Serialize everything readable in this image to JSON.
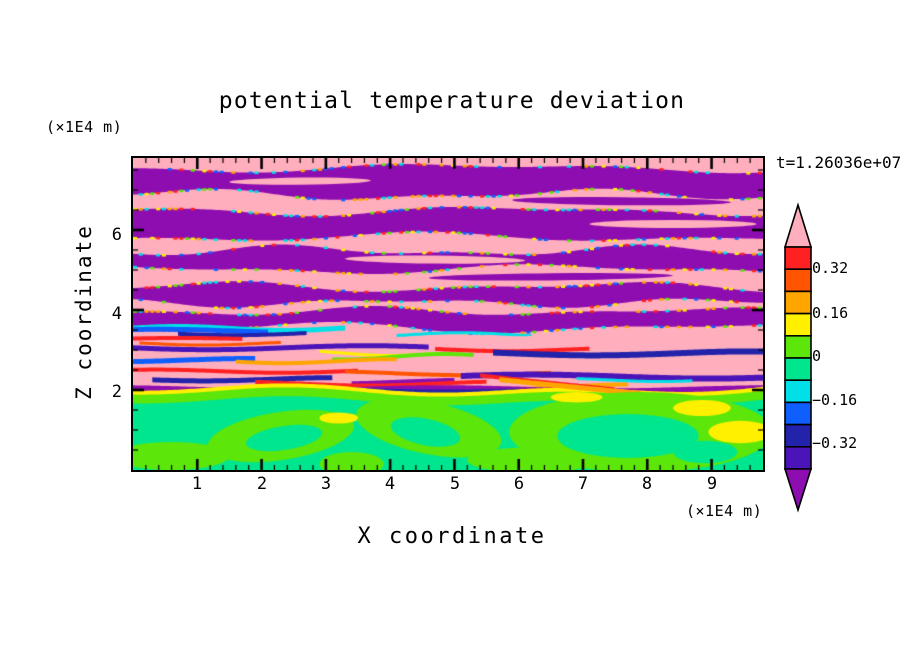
{
  "header": {
    "title": "potential temperature deviation"
  },
  "status": {
    "time_label": "t=1.26036e+07"
  },
  "axes": {
    "x": {
      "label": "X coordinate",
      "unit": "(×1E4 m)",
      "tick_labels": [
        "1",
        "2",
        "3",
        "4",
        "5",
        "6",
        "7",
        "8",
        "9"
      ]
    },
    "z": {
      "label": "Z coordinate",
      "unit": "(×1E4 m)",
      "tick_labels": [
        "6",
        "4",
        "2"
      ]
    }
  },
  "colorbar": {
    "tick_labels": [
      "0.32",
      "0.16",
      "0",
      "−0.16",
      "−0.32"
    ]
  },
  "chart_data": {
    "type": "heatmap",
    "title": "potential temperature deviation",
    "xlabel": "X coordinate",
    "ylabel": "Z coordinate",
    "x_unit": "x1E4 m",
    "z_unit": "x1E4 m",
    "time": "t=1.26036e+07",
    "x_range": [
      0,
      9.8
    ],
    "z_range": [
      0,
      7.8
    ],
    "x_major_ticks": [
      1,
      2,
      3,
      4,
      5,
      6,
      7,
      8,
      9
    ],
    "z_major_ticks": [
      2,
      4,
      6
    ],
    "x_minor_step": 0.2,
    "z_minor_step": 0.5,
    "grid": false,
    "legend_position": "right-colorbar",
    "seed": 11,
    "background": "pink",
    "palette": {
      "pink": "#FFAEBE",
      "red": "#FF2121",
      "orangered": "#FF5500",
      "orange": "#FFA500",
      "yellow": "#FFF000",
      "chartreuse": "#5CE60A",
      "green": "#00E68F",
      "cyan": "#00E0E6",
      "blue": "#0F5FFF",
      "navy": "#2222AA",
      "violet": "#4A14B8",
      "purple": "#8E0DB0"
    },
    "colorbar": {
      "levels": [
        -0.4,
        -0.32,
        -0.24,
        -0.16,
        -0.08,
        0,
        0.08,
        0.16,
        0.24,
        0.32,
        0.4
      ],
      "labeled_levels": [
        0.32,
        0.16,
        0,
        -0.16,
        -0.32
      ],
      "segment_colors": [
        "pink",
        "red",
        "orangered",
        "orange",
        "yellow",
        "chartreuse",
        "green",
        "cyan",
        "blue",
        "navy",
        "violet",
        "purple"
      ]
    },
    "edge_palette": [
      "cyan",
      "yellow",
      "red",
      "blue",
      "chartreuse",
      "orange"
    ],
    "bands": [
      {
        "c": "purple",
        "zt": 7.55,
        "zb": 6.88,
        "t": [
          0.08,
          1.2,
          3.8,
          0.05,
          2.7,
          1.1
        ],
        "b": [
          0.1,
          1.6,
          0.7,
          0.06,
          3.3,
          4.8
        ]
      },
      {
        "c": "purple",
        "zt": 6.48,
        "zb": 5.82,
        "t": [
          0.09,
          1.5,
          2.2,
          0.05,
          2.9,
          5.6
        ],
        "b": [
          0.08,
          1.3,
          4.1,
          0.06,
          2.4,
          0.9
        ]
      },
      {
        "c": "purple",
        "zt": 5.48,
        "zb": 5.02,
        "t": [
          0.1,
          1.8,
          5.0,
          0.06,
          3.5,
          2.8
        ],
        "b": [
          0.09,
          1.4,
          1.9,
          0.05,
          2.8,
          3.7
        ]
      },
      {
        "c": "purple",
        "zt": 4.58,
        "zb": 4.18,
        "t": [
          0.09,
          1.6,
          0.3,
          0.06,
          3.0,
          4.4
        ],
        "b": [
          0.08,
          2.0,
          2.6,
          0.05,
          3.6,
          1.5
        ]
      },
      {
        "c": "purple",
        "zt": 3.97,
        "zb": 3.55,
        "t": [
          0.08,
          1.9,
          3.3,
          0.05,
          3.2,
          0.2
        ],
        "b": [
          0.1,
          1.5,
          5.2,
          0.06,
          2.6,
          2.3
        ]
      }
    ],
    "lenses": [
      {
        "c": "purple",
        "cx": 7.6,
        "cy": 6.72,
        "rx": 1.7,
        "ry": 0.1,
        "rot": 0.01
      },
      {
        "c": "pink",
        "cx": 2.6,
        "cy": 7.22,
        "rx": 1.1,
        "ry": 0.09,
        "rot": -0.01
      },
      {
        "c": "pink",
        "cx": 4.7,
        "cy": 5.26,
        "rx": 1.4,
        "ry": 0.1,
        "rot": 0.01
      },
      {
        "c": "purple",
        "cx": 6.5,
        "cy": 4.83,
        "rx": 1.9,
        "ry": 0.09,
        "rot": -0.01
      },
      {
        "c": "purple",
        "cx": 1.9,
        "cy": 4.4,
        "rx": 1.3,
        "ry": 0.08,
        "rot": 0.02
      },
      {
        "c": "pink",
        "cx": 8.4,
        "cy": 6.15,
        "rx": 1.3,
        "ry": 0.1,
        "rot": 0
      }
    ],
    "streaks": [
      {
        "c": "cyan",
        "z": 3.6,
        "x0": 0,
        "x1": 3.3,
        "th": 5,
        "a": 0.05,
        "f": 3.0,
        "p": 0.2
      },
      {
        "c": "blue",
        "z": 3.54,
        "x0": 0,
        "x1": 2.1,
        "th": 5,
        "a": 0.04,
        "f": 2.2,
        "p": 1.0
      },
      {
        "c": "navy",
        "z": 3.46,
        "x0": 0.7,
        "x1": 2.7,
        "th": 4,
        "a": 0.04,
        "f": 2.6,
        "p": 2.1
      },
      {
        "c": "cyan",
        "z": 3.42,
        "x0": 4.1,
        "x1": 6.2,
        "th": 3,
        "a": 0.05,
        "f": 3.1,
        "p": 4.0
      },
      {
        "c": "red",
        "z": 3.32,
        "x0": 0,
        "x1": 1.7,
        "th": 4,
        "a": 0.03,
        "f": 2.1,
        "p": 0.6
      },
      {
        "c": "pink",
        "z": 3.3,
        "x0": 2.3,
        "x1": 9.8,
        "th": 9,
        "a": 0.05,
        "f": 1.6,
        "p": 1.2
      },
      {
        "c": "orangered",
        "z": 3.2,
        "x0": 0.1,
        "x1": 2.3,
        "th": 3,
        "a": 0.04,
        "f": 3.0,
        "p": 2.6
      },
      {
        "c": "violet",
        "z": 3.12,
        "x0": 0,
        "x1": 4.6,
        "th": 5,
        "a": 0.05,
        "f": 2.0,
        "p": 3.2
      },
      {
        "c": "red",
        "z": 3.06,
        "x0": 4.7,
        "x1": 7.1,
        "th": 4,
        "a": 0.04,
        "f": 2.7,
        "p": 0.9
      },
      {
        "c": "navy",
        "z": 2.99,
        "x0": 5.6,
        "x1": 9.8,
        "th": 6,
        "a": 0.05,
        "f": 2.0,
        "p": 1.8
      },
      {
        "c": "yellow",
        "z": 2.96,
        "x0": 2.9,
        "x1": 4.7,
        "th": 3,
        "a": 0.06,
        "f": 3.4,
        "p": 2.3
      },
      {
        "c": "chartreuse",
        "z": 2.88,
        "x0": 3.1,
        "x1": 5.3,
        "th": 4,
        "a": 0.07,
        "f": 3.1,
        "p": 4.5
      },
      {
        "c": "blue",
        "z": 2.81,
        "x0": 0,
        "x1": 1.9,
        "th": 5,
        "a": 0.04,
        "f": 2.3,
        "p": 5.1
      },
      {
        "c": "orange",
        "z": 2.77,
        "x0": 1.6,
        "x1": 4.1,
        "th": 4,
        "a": 0.05,
        "f": 2.9,
        "p": 0.4
      },
      {
        "c": "pink",
        "z": 2.63,
        "x0": 0,
        "x1": 9.8,
        "th": 8,
        "a": 0.05,
        "f": 1.7,
        "p": 2.8
      },
      {
        "c": "red",
        "z": 2.52,
        "x0": 0,
        "x1": 3.5,
        "th": 4,
        "a": 0.04,
        "f": 2.5,
        "p": 1.0
      },
      {
        "c": "orangered",
        "z": 2.47,
        "x0": 3.3,
        "x1": 6.5,
        "th": 4,
        "a": 0.05,
        "f": 2.1,
        "p": 4.0
      },
      {
        "c": "violet",
        "z": 2.41,
        "x0": 5.1,
        "x1": 9.8,
        "th": 6,
        "a": 0.05,
        "f": 1.8,
        "p": 0.7
      },
      {
        "c": "navy",
        "z": 2.33,
        "x0": 0.3,
        "x1": 3.1,
        "th": 5,
        "a": 0.04,
        "f": 2.4,
        "p": 3.0
      },
      {
        "c": "cyan",
        "z": 2.29,
        "x0": 6.9,
        "x1": 8.7,
        "th": 3,
        "a": 0.04,
        "f": 3.0,
        "p": 1.5
      },
      {
        "c": "purple",
        "z": 2.26,
        "x0": 3.4,
        "x1": 5.0,
        "th": 5,
        "a": 0.05,
        "f": 2.0,
        "p": 0.9
      },
      {
        "c": "red",
        "z": 2.21,
        "x0": 1.9,
        "x1": 5.5,
        "th": 4,
        "a": 0.05,
        "f": 2.3,
        "p": 5.6
      },
      {
        "c": "orange",
        "z": 2.13,
        "x0": 4.9,
        "x1": 7.7,
        "th": 4,
        "a": 0.06,
        "f": 2.4,
        "p": 2.2
      },
      {
        "c": "purple",
        "z": 2.08,
        "x0": 0,
        "x1": 9.8,
        "th": 6,
        "a": 0.04,
        "f": 1.9,
        "p": 2.0
      },
      {
        "c": "navy",
        "z": 2.04,
        "x0": 2.0,
        "x1": 6.0,
        "th": 4,
        "a": 0.03,
        "f": 2.2,
        "p": 4.1
      },
      {
        "c": "red",
        "z": 2.42,
        "x0": 5.4,
        "x1": 7.5,
        "th": 4,
        "a": 0.02,
        "f": 1.0,
        "p": 0,
        "sl": -0.16,
        "ly": 2
      },
      {
        "c": "orange",
        "z": 2.34,
        "x0": 5.7,
        "x1": 7.9,
        "th": 5,
        "a": 0.02,
        "f": 1.0,
        "p": 0.5,
        "sl": -0.16,
        "ly": 2
      }
    ],
    "green_zone": {
      "base": 1.9,
      "tilt": 0.15,
      "w": [
        0.1,
        0.8,
        1.0,
        0.08,
        2.3,
        4.2
      ],
      "interface": [
        {
          "c": "yellow",
          "off": 0.07,
          "th": 0.14
        },
        {
          "c": "chartreuse",
          "off": -0.03,
          "th": 0.22
        }
      ]
    },
    "blobs": [
      {
        "c": "chartreuse",
        "cx": 0.6,
        "cy": 0.35,
        "rx": 0.9,
        "ry": 0.35,
        "rot": 0
      },
      {
        "c": "chartreuse",
        "cx": 2.3,
        "cy": 0.85,
        "rx": 1.15,
        "ry": 0.6,
        "rot": -0.15
      },
      {
        "c": "chartreuse",
        "cx": 4.6,
        "cy": 1.05,
        "rx": 1.15,
        "ry": 0.65,
        "rot": 0.2
      },
      {
        "c": "chartreuse",
        "cx": 7.9,
        "cy": 0.95,
        "rx": 2.05,
        "ry": 1.0,
        "rot": 0
      },
      {
        "c": "chartreuse",
        "cx": 6.2,
        "cy": 0.25,
        "rx": 1.0,
        "ry": 0.32,
        "rot": 0
      },
      {
        "c": "chartreuse",
        "cx": 3.4,
        "cy": 0.15,
        "rx": 0.5,
        "ry": 0.3,
        "rot": 0
      },
      {
        "c": "green",
        "cx": 2.35,
        "cy": 0.8,
        "rx": 0.6,
        "ry": 0.3,
        "rot": -0.15
      },
      {
        "c": "green",
        "cx": 4.55,
        "cy": 0.95,
        "rx": 0.55,
        "ry": 0.33,
        "rot": 0.2
      },
      {
        "c": "green",
        "cx": 7.7,
        "cy": 0.85,
        "rx": 1.1,
        "ry": 0.55,
        "rot": 0
      },
      {
        "c": "green",
        "cx": 8.9,
        "cy": 0.45,
        "rx": 0.5,
        "ry": 0.28,
        "rot": 0
      },
      {
        "c": "yellow",
        "cx": 6.9,
        "cy": 1.82,
        "rx": 0.4,
        "ry": 0.13,
        "rot": 0
      },
      {
        "c": "yellow",
        "cx": 8.85,
        "cy": 1.55,
        "rx": 0.45,
        "ry": 0.2,
        "rot": 0
      },
      {
        "c": "yellow",
        "cx": 9.45,
        "cy": 0.95,
        "rx": 0.5,
        "ry": 0.28,
        "rot": 0
      },
      {
        "c": "yellow",
        "cx": 3.2,
        "cy": 1.3,
        "rx": 0.3,
        "ry": 0.14,
        "rot": 0
      }
    ]
  }
}
